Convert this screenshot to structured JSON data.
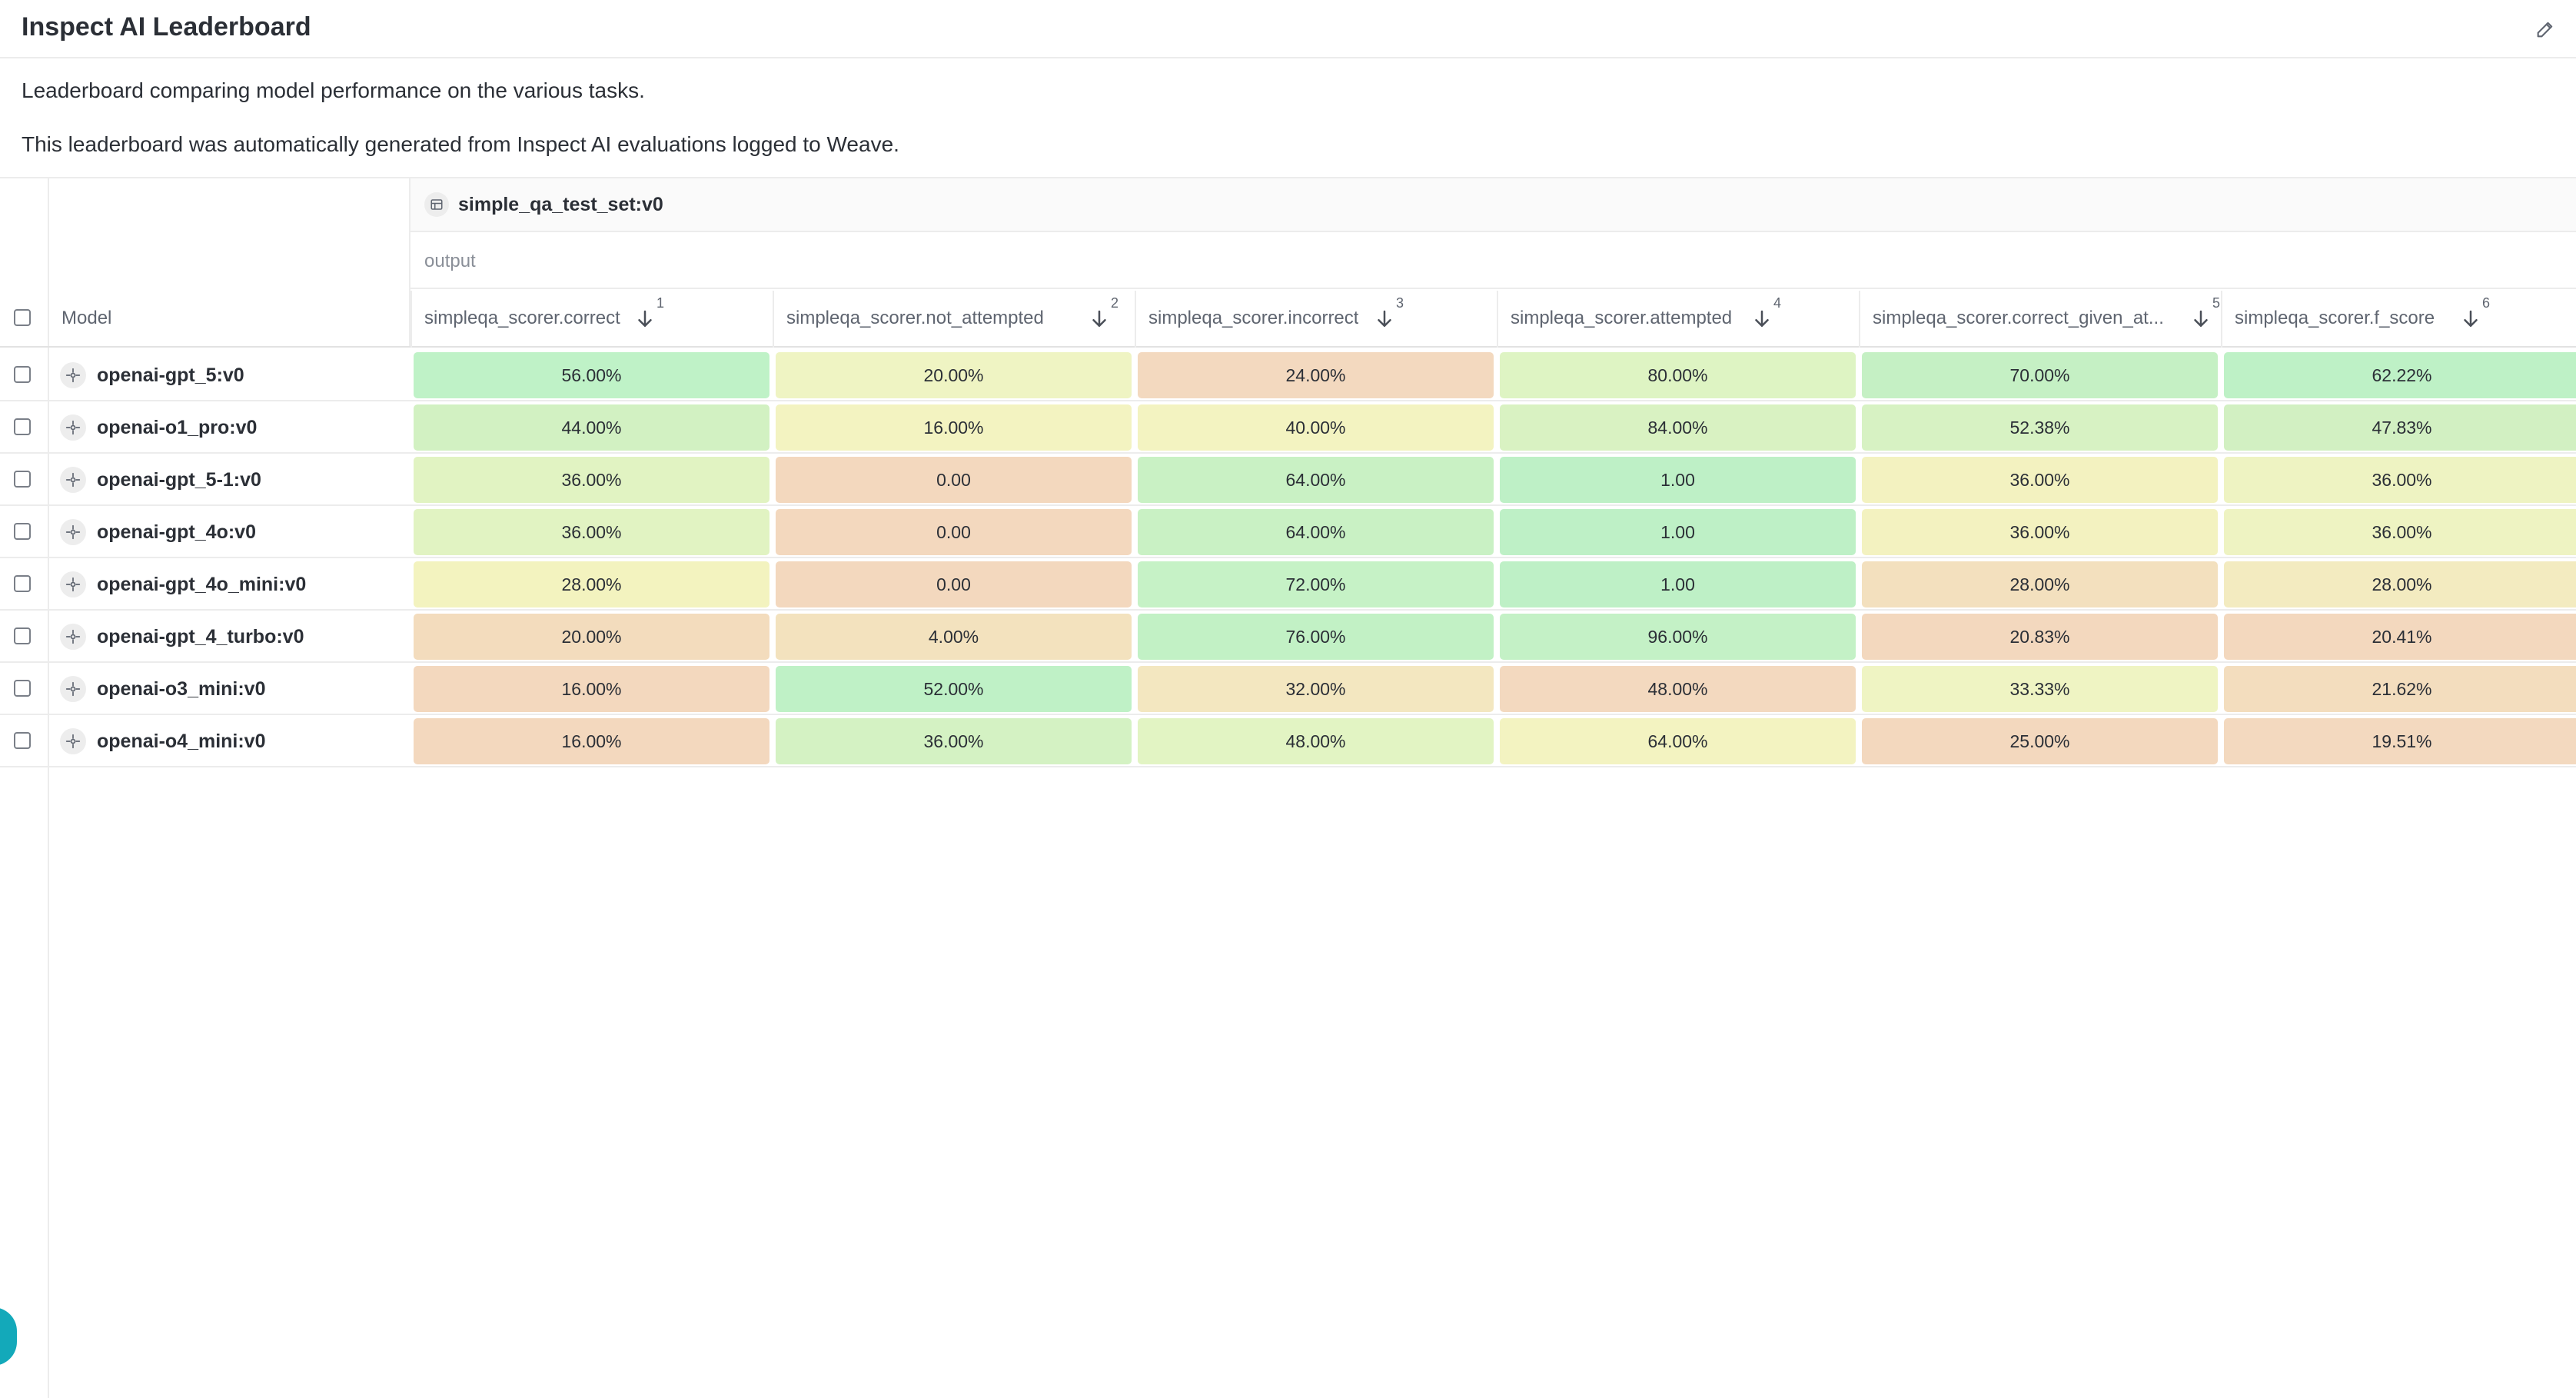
{
  "header": {
    "title": "Inspect AI Leaderboard"
  },
  "description": {
    "line1": "Leaderboard comparing model performance on the various tasks.",
    "line2": "This leaderboard was automatically generated from Inspect AI evaluations logged to Weave."
  },
  "table": {
    "dataset_label": "simple_qa_test_set:v0",
    "output_label": "output",
    "model_header": "Model",
    "columns": [
      {
        "label": "simpleqa_scorer.correct",
        "rank": "1"
      },
      {
        "label": "simpleqa_scorer.not_attempted",
        "rank": "2"
      },
      {
        "label": "simpleqa_scorer.incorrect",
        "rank": "3"
      },
      {
        "label": "simpleqa_scorer.attempted",
        "rank": "4"
      },
      {
        "label": "simpleqa_scorer.correct_given_at...",
        "rank": "5"
      },
      {
        "label": "simpleqa_scorer.f_score",
        "rank": "6"
      }
    ],
    "rows": [
      {
        "model": "openai-gpt_5:v0",
        "values": [
          "56.00%",
          "20.00%",
          "24.00%",
          "80.00%",
          "70.00%",
          "62.22%"
        ]
      },
      {
        "model": "openai-o1_pro:v0",
        "values": [
          "44.00%",
          "16.00%",
          "40.00%",
          "84.00%",
          "52.38%",
          "47.83%"
        ]
      },
      {
        "model": "openai-gpt_5-1:v0",
        "values": [
          "36.00%",
          "0.00",
          "64.00%",
          "1.00",
          "36.00%",
          "36.00%"
        ]
      },
      {
        "model": "openai-gpt_4o:v0",
        "values": [
          "36.00%",
          "0.00",
          "64.00%",
          "1.00",
          "36.00%",
          "36.00%"
        ]
      },
      {
        "model": "openai-gpt_4o_mini:v0",
        "values": [
          "28.00%",
          "0.00",
          "72.00%",
          "1.00",
          "28.00%",
          "28.00%"
        ]
      },
      {
        "model": "openai-gpt_4_turbo:v0",
        "values": [
          "20.00%",
          "4.00%",
          "76.00%",
          "96.00%",
          "20.83%",
          "20.41%"
        ]
      },
      {
        "model": "openai-o3_mini:v0",
        "values": [
          "16.00%",
          "52.00%",
          "32.00%",
          "48.00%",
          "33.33%",
          "21.62%"
        ]
      },
      {
        "model": "openai-o4_mini:v0",
        "values": [
          "16.00%",
          "36.00%",
          "48.00%",
          "64.00%",
          "25.00%",
          "19.51%"
        ]
      }
    ],
    "cell_colors": [
      [
        "#bff2c7",
        "#eff4c3",
        "#f3d9bf",
        "#def4c3",
        "#c5f0c4",
        "#bef1c6"
      ],
      [
        "#d2f1c2",
        "#f3f3c1",
        "#f3f3c1",
        "#d9f2c2",
        "#d7f2c3",
        "#d2f0c2"
      ],
      [
        "#e1f3c2",
        "#f3d8be",
        "#c9f1c4",
        "#bef0c6",
        "#f3f2c0",
        "#eef3c2"
      ],
      [
        "#e1f3c2",
        "#f3d8be",
        "#c9f1c4",
        "#bef0c6",
        "#f3f2c0",
        "#eef3c2"
      ],
      [
        "#f3f3bf",
        "#f3d8be",
        "#c6f2c6",
        "#bef0c6",
        "#f3e0be",
        "#f3ebc0"
      ],
      [
        "#f3dcbd",
        "#f3e2be",
        "#c2f1c5",
        "#c4f1c6",
        "#f3d8be",
        "#f3d8be"
      ],
      [
        "#f3d8be",
        "#bff1c6",
        "#f3e7c0",
        "#f3d9bf",
        "#eff4c3",
        "#f3ddbe"
      ],
      [
        "#f3d8be",
        "#d4f2c3",
        "#e2f4c3",
        "#f3f3c1",
        "#f3d8be",
        "#f3d9bf"
      ]
    ],
    "accent_color": "#13a9ba"
  }
}
